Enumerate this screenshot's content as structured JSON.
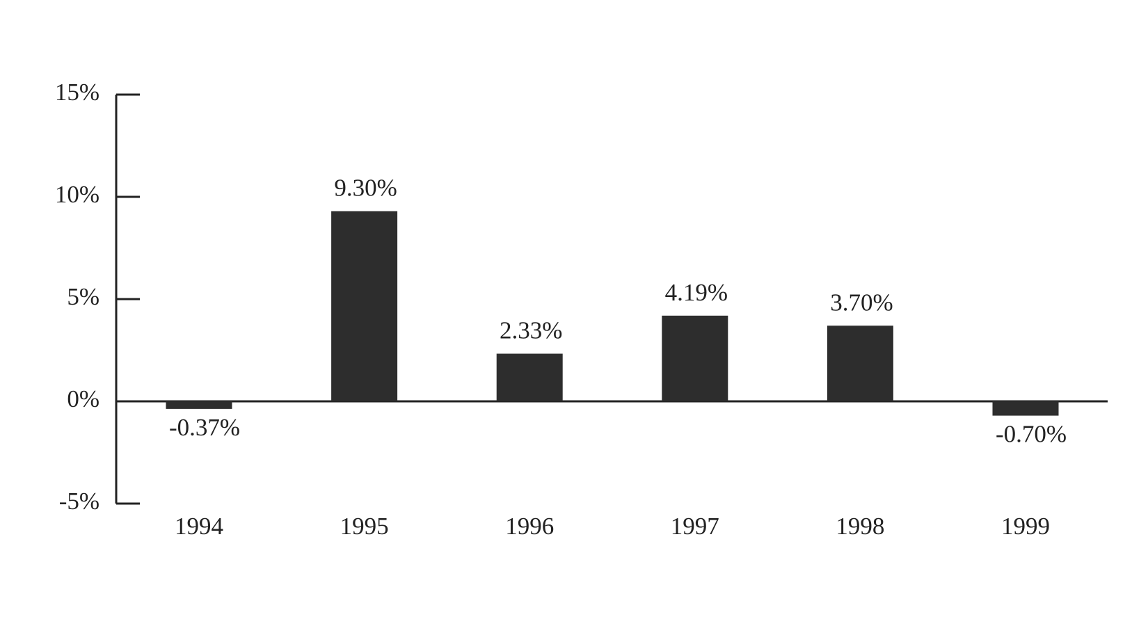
{
  "chart_data": {
    "type": "bar",
    "categories": [
      "1994",
      "1995",
      "1996",
      "1997",
      "1998",
      "1999"
    ],
    "values": [
      -0.37,
      9.3,
      2.33,
      4.19,
      3.7,
      -0.7
    ],
    "value_labels": [
      "-0.37%",
      "9.30%",
      "2.33%",
      "4.19%",
      "3.70%",
      "-0.70%"
    ],
    "color": "#2d2d2d",
    "ylim": [
      -5,
      15
    ],
    "yticks": [
      {
        "value": -5,
        "label": "-5%"
      },
      {
        "value": 0,
        "label": "0%"
      },
      {
        "value": 5,
        "label": "5%"
      },
      {
        "value": 10,
        "label": "10%"
      },
      {
        "value": 15,
        "label": "15%"
      }
    ]
  }
}
